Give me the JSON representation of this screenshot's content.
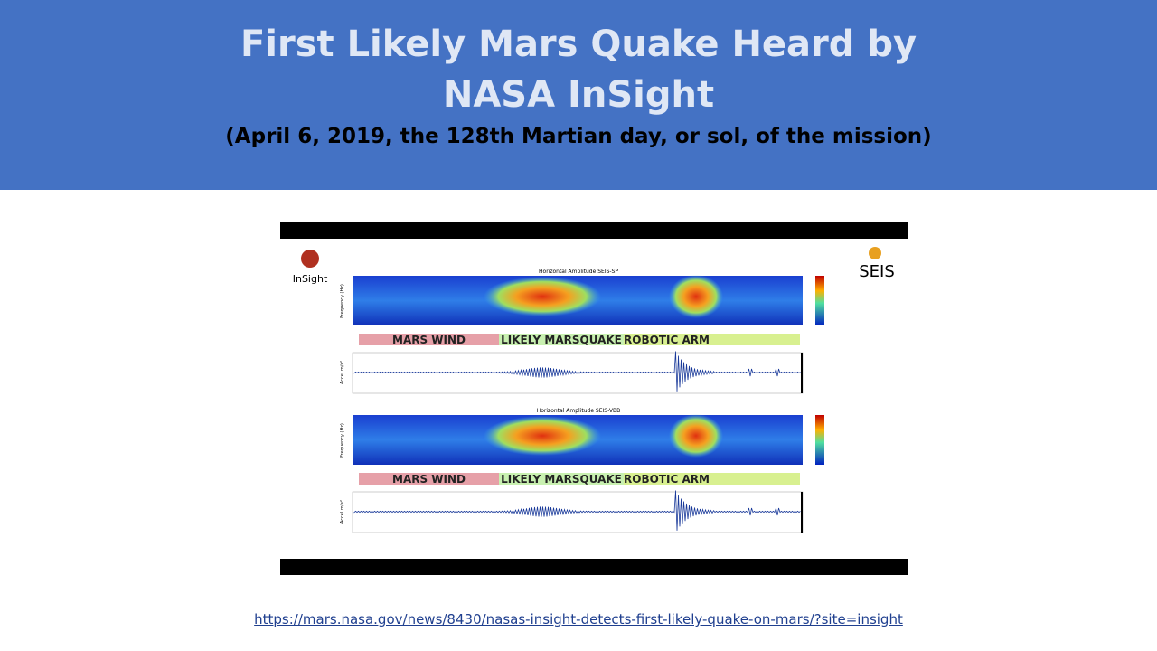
{
  "header": {
    "title_line1": "First Likely Mars Quake Heard by",
    "title_line2": "NASA InSight",
    "subtitle": "(April 6, 2019, the 128th Martian day, or sol, of the mission)"
  },
  "figure": {
    "logos": {
      "left": "InSight",
      "right": "SEIS"
    },
    "axis_labels": {
      "spectrogram": "Frequency (Hz)",
      "seismogram": "Accel m/s²"
    },
    "panels": [
      {
        "title": "Horizontal Amplitude SEIS-SP",
        "bands": [
          "MARS WIND",
          "LIKELY MARSQUAKE",
          "ROBOTIC ARM"
        ]
      },
      {
        "title": "Horizontal Amplitude SEIS-VBB",
        "bands": [
          "MARS WIND",
          "LIKELY MARSQUAKE",
          "ROBOTIC ARM"
        ]
      }
    ]
  },
  "link": {
    "text": "https://mars.nasa.gov/news/8430/nasas-insight-detects-first-likely-quake-on-mars/?site=insight"
  }
}
